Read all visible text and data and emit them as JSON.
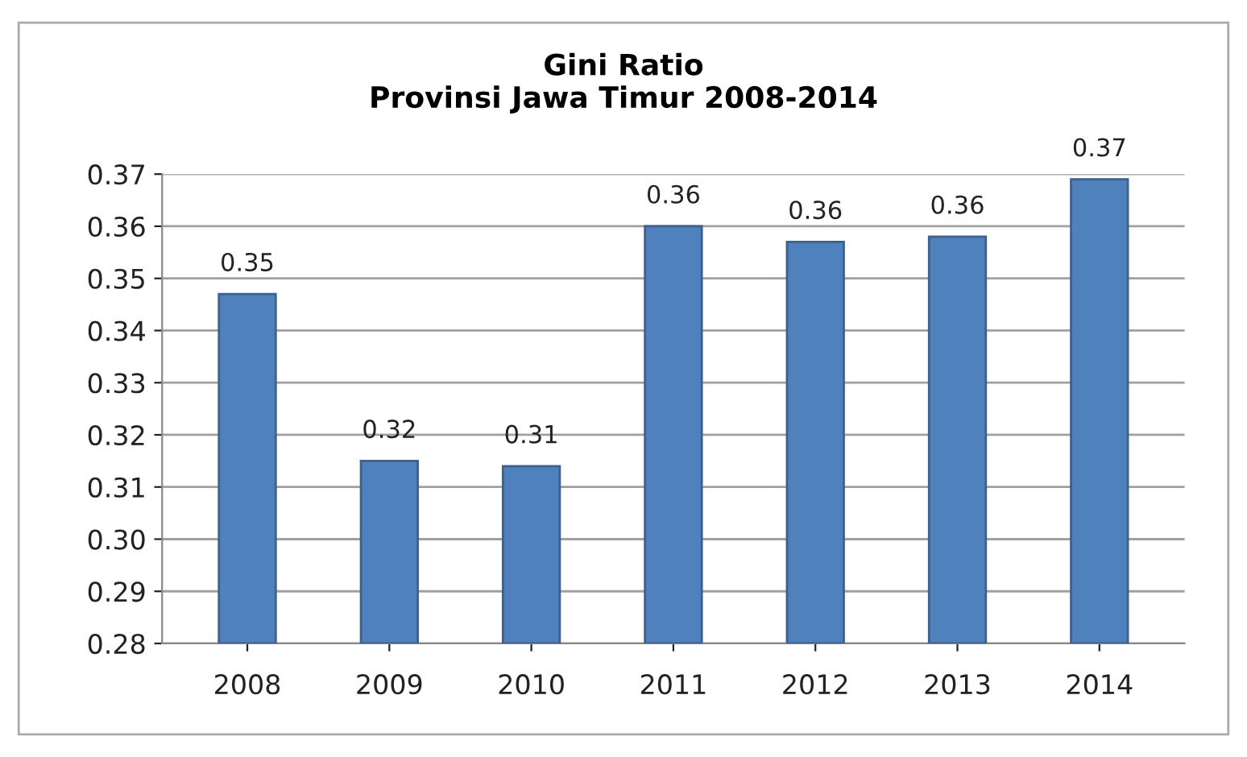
{
  "chart_data": {
    "type": "bar",
    "title": "Gini Ratio\nProvinsi Jawa Timur 2008-2014",
    "categories": [
      "2008",
      "2009",
      "2010",
      "2011",
      "2012",
      "2013",
      "2014"
    ],
    "values": [
      0.347,
      0.315,
      0.314,
      0.36,
      0.357,
      0.358,
      0.369
    ],
    "value_labels": [
      "0.35",
      "0.32",
      "0.31",
      "0.36",
      "0.36",
      "0.36",
      "0.37"
    ],
    "color": "#4f81bd",
    "ylim": [
      0.28,
      0.37
    ],
    "yticks": [
      {
        "value": 0.28,
        "label": "0.28"
      },
      {
        "value": 0.29,
        "label": "0.29"
      },
      {
        "value": 0.3,
        "label": "0.30"
      },
      {
        "value": 0.31,
        "label": "0.31"
      },
      {
        "value": 0.32,
        "label": "0.32"
      },
      {
        "value": 0.33,
        "label": "0.33"
      },
      {
        "value": 0.34,
        "label": "0.34"
      },
      {
        "value": 0.35,
        "label": "0.35"
      },
      {
        "value": 0.36,
        "label": "0.36"
      },
      {
        "value": 0.37,
        "label": "0.37"
      }
    ],
    "grid": "y"
  }
}
